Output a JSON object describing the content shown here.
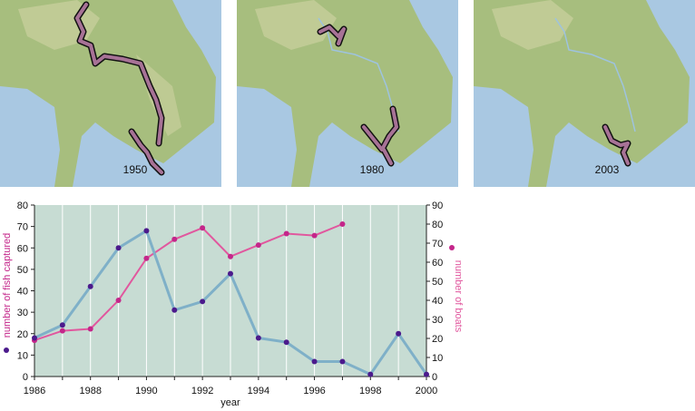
{
  "maps": [
    {
      "year_label": "1950"
    },
    {
      "year_label": "1980"
    },
    {
      "year_label": "2003"
    }
  ],
  "colors": {
    "water": "#a9c8e2",
    "land": "#a7be7e",
    "highland": "#d6d6a8",
    "range": "#a77296",
    "plot_bg": "#c7dcd3",
    "fish_line": "#7fb0c8",
    "fish_marker": "#4b1a8c",
    "boats_color": "#e1579e",
    "boats_marker": "#c4268a"
  },
  "chart_data": {
    "type": "line",
    "xlabel": "year",
    "ylabel_left": "number of fish captured",
    "ylabel_right": "number of boats",
    "xlim": [
      1986,
      2000
    ],
    "ylim_left": [
      0,
      80
    ],
    "ylim_right": [
      0,
      90
    ],
    "grid": true,
    "x_ticks": [
      "1986",
      "1988",
      "1990",
      "1992",
      "1994",
      "1996",
      "1998",
      "2000"
    ],
    "y_ticks_left": [
      "0",
      "10",
      "20",
      "30",
      "40",
      "50",
      "60",
      "70",
      "80"
    ],
    "y_ticks_right": [
      "0",
      "10",
      "20",
      "30",
      "40",
      "50",
      "60",
      "70",
      "80",
      "90"
    ],
    "series": [
      {
        "name": "number of fish captured",
        "axis": "left",
        "x": [
          1986,
          1987,
          1988,
          1989,
          1990,
          1991,
          1992,
          1993,
          1994,
          1995,
          1996,
          1997,
          1998,
          1999,
          2000
        ],
        "values": [
          18,
          24,
          42,
          60,
          68,
          31,
          35,
          48,
          18,
          16,
          7,
          7,
          1,
          20,
          1
        ]
      },
      {
        "name": "number of boats",
        "axis": "right",
        "x": [
          1986,
          1987,
          1988,
          1989,
          1990,
          1991,
          1992,
          1993,
          1994,
          1995,
          1996,
          1997
        ],
        "values": [
          19,
          24,
          25,
          40,
          62,
          72,
          78,
          63,
          69,
          75,
          74,
          80
        ]
      }
    ]
  }
}
